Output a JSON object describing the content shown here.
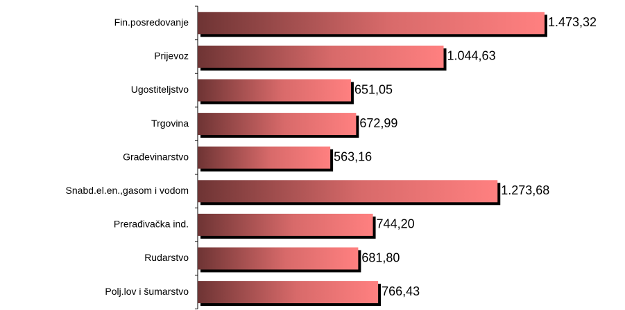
{
  "chart_data": {
    "type": "bar",
    "orientation": "horizontal",
    "categories": [
      "Fin.posredovanje",
      "Prijevoz",
      "Ugostiteljstvo",
      "Trgovina",
      "Građevinarstvo",
      "Snabd.el.en.,gasom i vodom",
      "Prerađivačka ind.",
      "Rudarstvo",
      "Polj.lov i šumarstvo"
    ],
    "values": [
      1473.32,
      1044.63,
      651.05,
      672.99,
      563.16,
      1273.68,
      744.2,
      681.8,
      766.43
    ],
    "value_labels": [
      "1.473,32",
      "1.044,63",
      "651,05",
      "672,99",
      "563,16",
      "1.273,68",
      "744,20",
      "681,80",
      "766,43"
    ],
    "color": "#ff8080"
  }
}
